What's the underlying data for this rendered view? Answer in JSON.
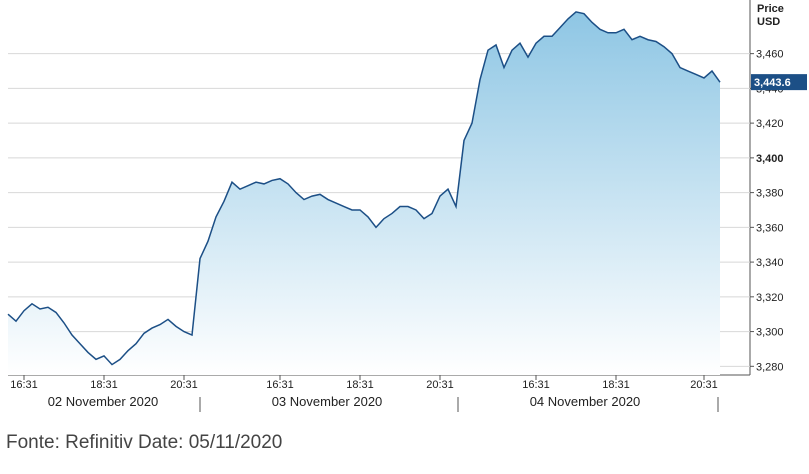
{
  "chart_data": {
    "type": "area",
    "axis_title": [
      "Price",
      "USD"
    ],
    "series": [
      {
        "name": "Price",
        "color": "#1c4f86",
        "values": [
          3310,
          3306,
          3312,
          3316,
          3313,
          3314,
          3311,
          3305,
          3298,
          3293,
          3288,
          3284,
          3286,
          3281,
          3284,
          3289,
          3293,
          3299,
          3302,
          3304,
          3307,
          3303,
          3300,
          3298,
          3342,
          3352,
          3366,
          3375,
          3386,
          3382,
          3384,
          3386,
          3385,
          3387,
          3388,
          3385,
          3380,
          3376,
          3378,
          3379,
          3376,
          3374,
          3372,
          3370,
          3370,
          3366,
          3360,
          3365,
          3368,
          3372,
          3372,
          3370,
          3365,
          3368,
          3378,
          3382,
          3372,
          3410,
          3420,
          3445,
          3462,
          3465,
          3452,
          3462,
          3466,
          3458,
          3466,
          3470,
          3470,
          3475,
          3480,
          3484,
          3483,
          3478,
          3474,
          3472,
          3472,
          3474,
          3468,
          3470,
          3468,
          3467,
          3464,
          3460,
          3452,
          3450,
          3448,
          3446,
          3450,
          3443.6
        ]
      }
    ],
    "current_price": {
      "value": 3443.6,
      "label": "3,443.6"
    },
    "xticks": [
      {
        "value": 2,
        "label": "16:31"
      },
      {
        "value": 12,
        "label": "18:31"
      },
      {
        "value": 22,
        "label": "20:31"
      },
      {
        "value": 34,
        "label": "16:31"
      },
      {
        "value": 44,
        "label": "18:31"
      },
      {
        "value": 54,
        "label": "20:31"
      },
      {
        "value": 66,
        "label": "16:31"
      },
      {
        "value": 76,
        "label": "18:31"
      },
      {
        "value": 87,
        "label": "20:31"
      }
    ],
    "date_labels": [
      "02 November 2020",
      "03 November 2020",
      "04 November 2020"
    ],
    "ylim": [
      3275,
      3488
    ],
    "yticks": [
      {
        "value": 3280,
        "label": "3,280"
      },
      {
        "value": 3300,
        "label": "3,300"
      },
      {
        "value": 3320,
        "label": "3,320"
      },
      {
        "value": 3340,
        "label": "3,340"
      },
      {
        "value": 3360,
        "label": "3,360"
      },
      {
        "value": 3380,
        "label": "3,380"
      },
      {
        "value": 3400,
        "label": "3,400"
      },
      {
        "value": 3420,
        "label": "3,420"
      },
      {
        "value": 3440,
        "label": "3,440"
      },
      {
        "value": 3460,
        "label": "3,460"
      }
    ],
    "grid": true
  },
  "footer": "Fonte: Refinitiv Date: 05/11/2020"
}
